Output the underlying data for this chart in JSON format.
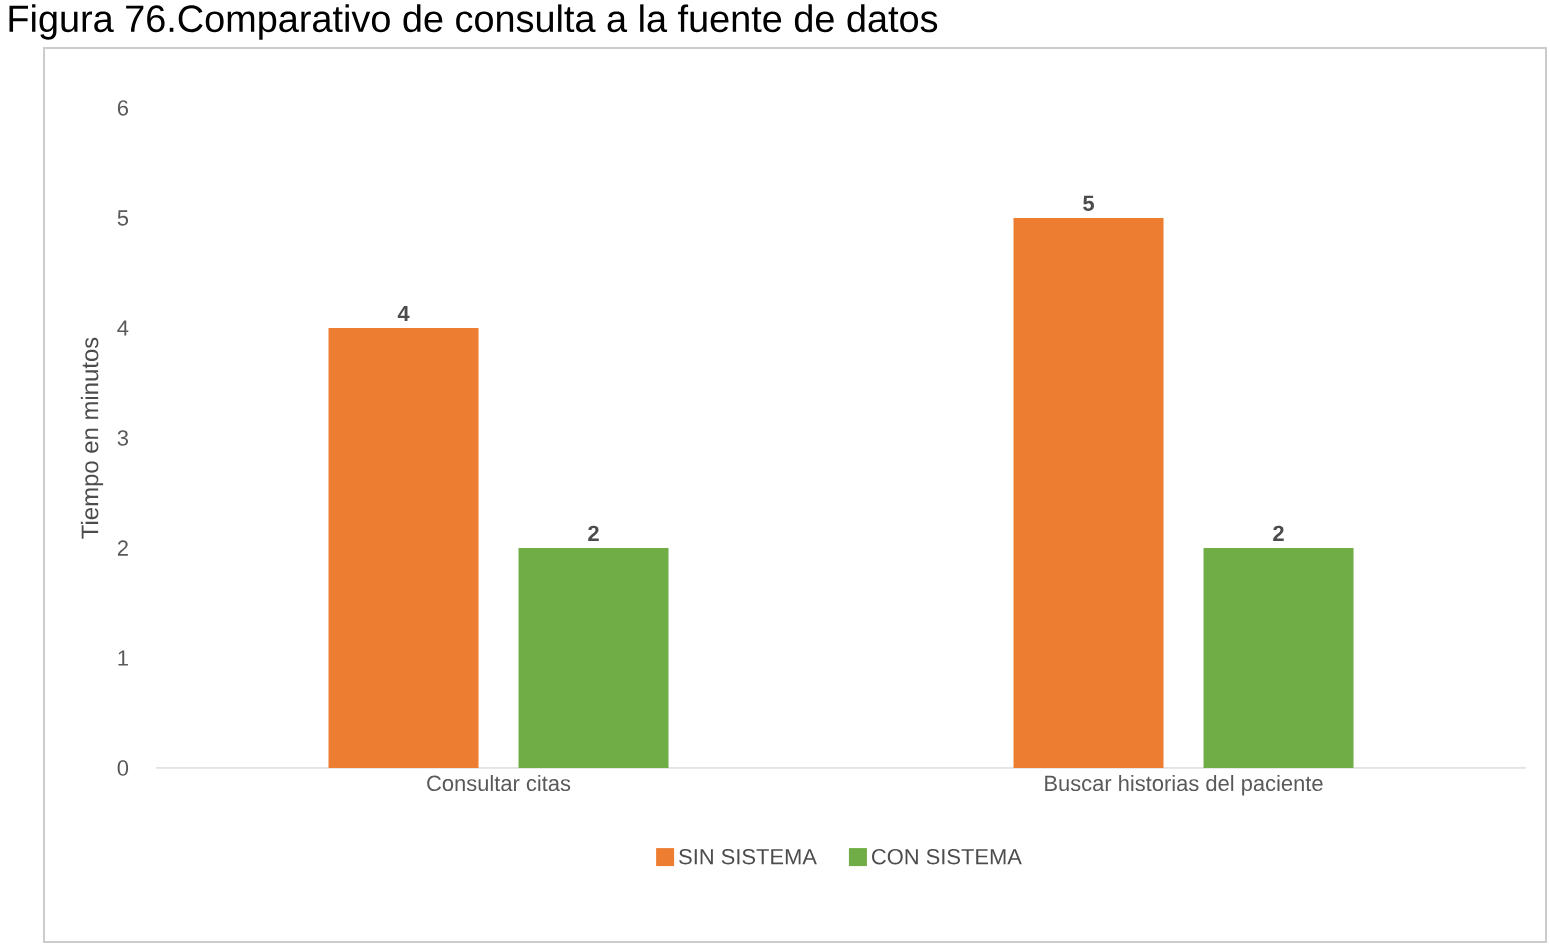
{
  "chart_data": {
    "type": "bar",
    "title": "Figura 76.Comparativo de consulta a la fuente de datos",
    "ylabel": "Tiempo en minutos",
    "categories": [
      "Consultar citas",
      "Buscar historias del paciente"
    ],
    "series": [
      {
        "name": "SIN SISTEMA",
        "color": "#ed7d31",
        "values": [
          4,
          5
        ]
      },
      {
        "name": "CON SISTEMA",
        "color": "#70ad47",
        "values": [
          2,
          2
        ]
      }
    ],
    "ylim": [
      0,
      6
    ],
    "yticks": [
      0,
      1,
      2,
      3,
      4,
      5,
      6
    ],
    "data_labels": true,
    "legend": "bottom"
  }
}
